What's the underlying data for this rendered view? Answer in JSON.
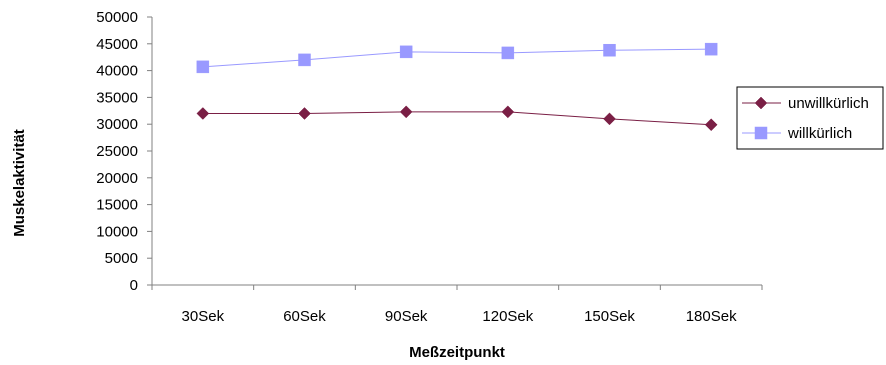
{
  "chart_data": {
    "type": "line",
    "categories": [
      "30Sek",
      "60Sek",
      "90Sek",
      "120Sek",
      "150Sek",
      "180Sek"
    ],
    "series": [
      {
        "name": "unwillkürlich",
        "values": [
          32000,
          32000,
          32300,
          32300,
          31000,
          29900
        ],
        "color": "#7a1f45",
        "marker": "diamond"
      },
      {
        "name": "willkürlich",
        "values": [
          40700,
          42000,
          43500,
          43300,
          43800,
          44000
        ],
        "color": "#9999ff",
        "marker": "square"
      }
    ],
    "xlabel": "Meßzeitpunkt",
    "ylabel": "Muskelaktivität",
    "ylim": [
      0,
      50000
    ],
    "yticks": [
      0,
      5000,
      10000,
      15000,
      20000,
      25000,
      30000,
      35000,
      40000,
      45000,
      50000
    ],
    "grid": false,
    "legend_position": "right"
  }
}
